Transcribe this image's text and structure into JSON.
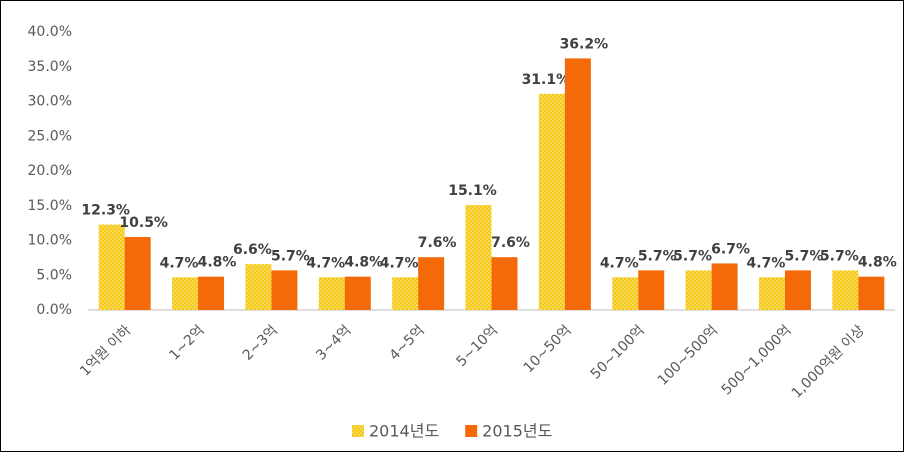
{
  "chart_data": {
    "type": "bar",
    "categories": [
      "1억원 이하",
      "1~2억",
      "2~3억",
      "3~4억",
      "4~5억",
      "5~10억",
      "10~50억",
      "50~100억",
      "100~500억",
      "500~1,000억",
      "1,000억원 이상"
    ],
    "series": [
      {
        "name": "2014년도",
        "color": "#f5c918",
        "pattern": "dots",
        "values": [
          12.3,
          4.7,
          6.6,
          4.7,
          4.7,
          15.1,
          31.1,
          4.7,
          5.7,
          4.7,
          5.7
        ],
        "value_labels": [
          "12.3%",
          "4.7%",
          "6.6%",
          "4.7%",
          "4.7%",
          "15.1%",
          "31.1%",
          "4.7%",
          "5.7%",
          "4.7%",
          "5.7%"
        ]
      },
      {
        "name": "2015년도",
        "color": "#f56a08",
        "values": [
          10.5,
          4.8,
          5.7,
          4.8,
          7.6,
          7.6,
          36.2,
          5.7,
          6.7,
          5.7,
          4.8
        ],
        "value_labels": [
          "10.5%",
          "4.8%",
          "5.7%",
          "4.8%",
          "7.6%",
          "7.6%",
          "36.2%",
          "5.7%",
          "6.7%",
          "5.7%",
          "4.8%"
        ]
      }
    ],
    "ylim": [
      0,
      40
    ],
    "yticks": [
      {
        "value": 0,
        "label": "0.0%"
      },
      {
        "value": 5,
        "label": "5.0%"
      },
      {
        "value": 10,
        "label": "10.0%"
      },
      {
        "value": 15,
        "label": "15.0%"
      },
      {
        "value": 20,
        "label": "20.0%"
      },
      {
        "value": 25,
        "label": "25.0%"
      },
      {
        "value": 30,
        "label": "30.0%"
      },
      {
        "value": 35,
        "label": "35.0%"
      },
      {
        "value": 40,
        "label": "40.0%"
      }
    ],
    "grid": false,
    "legend": "bottom"
  }
}
